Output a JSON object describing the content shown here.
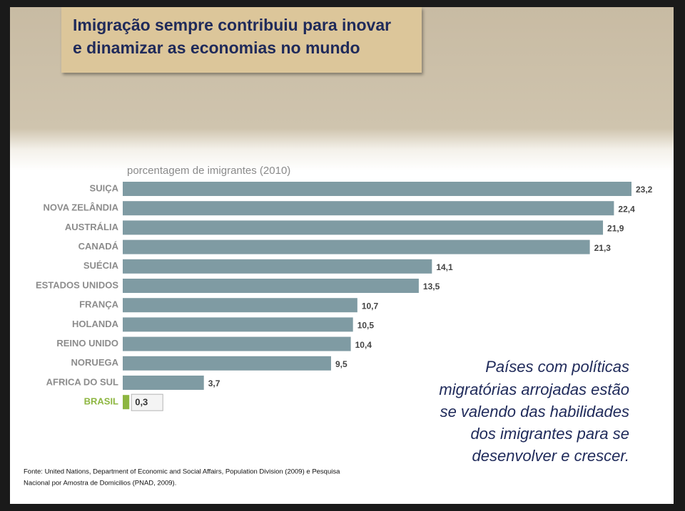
{
  "slide": {
    "title_lines": [
      "Imigração sempre contribuiu para inovar",
      "e dinamizar as economias no mundo"
    ],
    "message_lines": [
      "Países com políticas",
      "migratórias arrojadas estão",
      "se valendo das habilidades",
      "dos imigrantes para se",
      "desenvolver e crescer."
    ],
    "source_lines": [
      "Fonte: United Nations, Department of Economic and Social Affairs, Population Division (2009) e  Pesquisa",
      "Nacional por Amostra de Domicilios (PNAD, 2009)."
    ]
  },
  "chart_data": {
    "type": "bar",
    "orientation": "horizontal",
    "subtitle": "porcentagem de imigrantes (2010)",
    "categories": [
      "SUIÇA",
      "NOVA ZELÂNDIA",
      "AUSTRÁLIA",
      "CANADÁ",
      "SUÉCIA",
      "ESTADOS UNIDOS",
      "FRANÇA",
      "HOLANDA",
      "REINO UNIDO",
      "NORUEGA",
      "AFRICA DO SUL",
      "BRASIL"
    ],
    "values": [
      23.2,
      22.4,
      21.9,
      21.3,
      14.1,
      13.5,
      10.7,
      10.5,
      10.4,
      9.5,
      3.7,
      0.3
    ],
    "value_labels": [
      "23,2",
      "22,4",
      "21,9",
      "21,3",
      "14,1",
      "13,5",
      "10,7",
      "10,5",
      "10,4",
      "9,5",
      "3,7",
      "0,3"
    ],
    "color": "#7f9ba3",
    "highlight": "BRASIL",
    "highlight_color": "#8db640"
  }
}
